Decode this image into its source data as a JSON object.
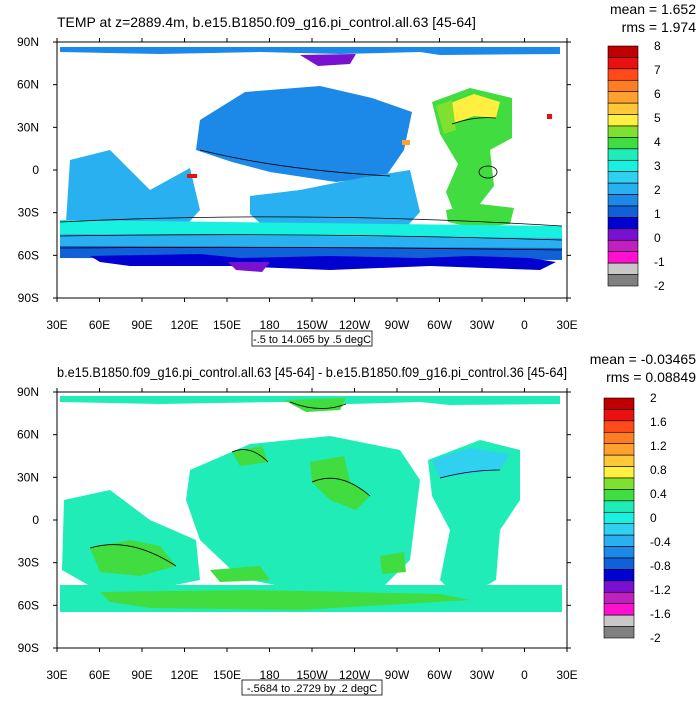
{
  "chart_data": [
    {
      "type": "heatmap",
      "title": "TEMP at z=2889.4m, b.e15.B1850.f09_g16.pi_control.all.63 [45-64]",
      "stats": {
        "mean": "mean = 1.652",
        "rms": "rms = 1.974"
      },
      "subtitle": "-.5 to 14.065 by .5 degC",
      "x_ticks": [
        "30E",
        "60E",
        "90E",
        "120E",
        "150E",
        "180",
        "150W",
        "120W",
        "90W",
        "60W",
        "30W",
        "0",
        "30E"
      ],
      "y_ticks": [
        "90N",
        "60N",
        "30N",
        "0",
        "30S",
        "60S",
        "90S"
      ],
      "colorbar_labels": [
        "8",
        "7",
        "6",
        "5",
        "4",
        "3",
        "2",
        "1",
        "0",
        "-1",
        "-2"
      ],
      "colors": [
        "#c00000",
        "#e81010",
        "#ff4a1a",
        "#ff7d22",
        "#ffa030",
        "#ffc838",
        "#fff040",
        "#80e030",
        "#40dc40",
        "#20ecb8",
        "#18f0e0",
        "#30d0f0",
        "#28b0f0",
        "#1c88e8",
        "#1060d8",
        "#0000d0",
        "#7a10d0",
        "#c020c0",
        "#ff10d0",
        "#c8c8c8",
        "#808080"
      ]
    },
    {
      "type": "heatmap",
      "title": "b.e15.B1850.f09_g16.pi_control.all.63 [45-64] - b.e15.B1850.f09_g16.pi_control.36 [45-64]",
      "stats": {
        "mean": "mean = -0.03465",
        "rms": "rms = 0.08849"
      },
      "subtitle": "-.5684 to .2729 by .2 degC",
      "x_ticks": [
        "30E",
        "60E",
        "90E",
        "120E",
        "150E",
        "180",
        "150W",
        "120W",
        "90W",
        "60W",
        "30W",
        "0",
        "30E"
      ],
      "y_ticks": [
        "90N",
        "60N",
        "30N",
        "0",
        "30S",
        "60S",
        "90S"
      ],
      "colorbar_labels": [
        "2",
        "1.6",
        "1.2",
        "0.8",
        "0.4",
        "0",
        "-0.4",
        "-0.8",
        "-1.2",
        "-1.6",
        "-2"
      ],
      "colors": [
        "#c00000",
        "#e81010",
        "#ff4a1a",
        "#ff7d22",
        "#ffa030",
        "#ffc838",
        "#fff040",
        "#80e030",
        "#40dc40",
        "#20ecb8",
        "#18f0e0",
        "#30d0f0",
        "#28b0f0",
        "#1c88e8",
        "#1060d8",
        "#0000d0",
        "#7a10d0",
        "#c020c0",
        "#ff10d0",
        "#c8c8c8",
        "#808080"
      ]
    }
  ]
}
